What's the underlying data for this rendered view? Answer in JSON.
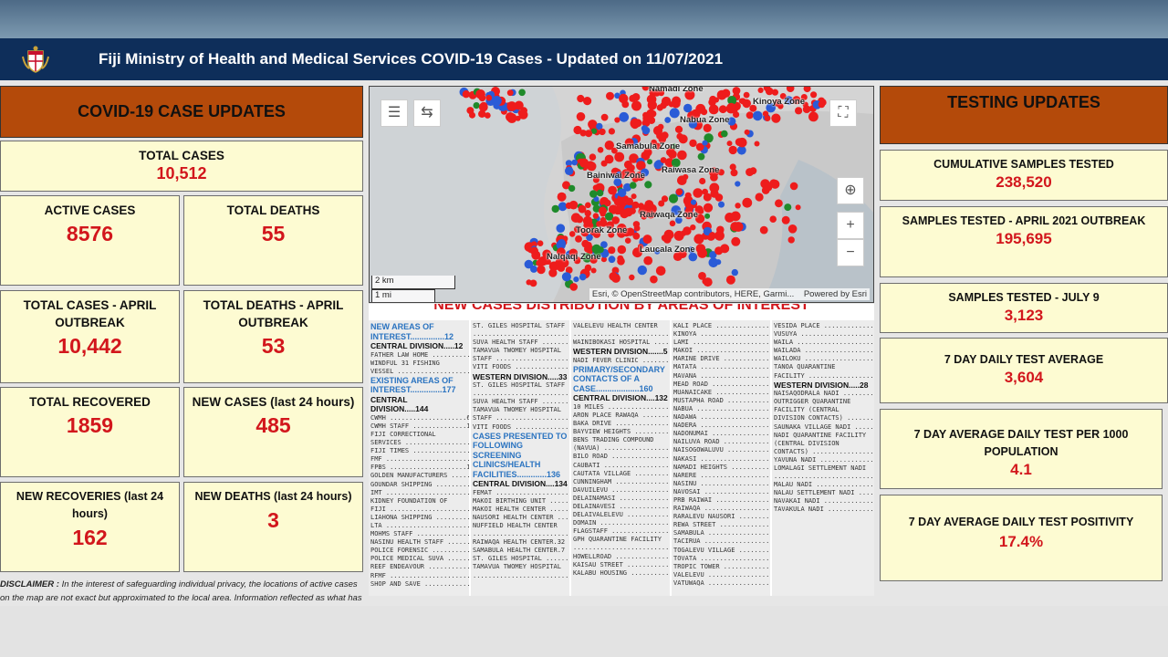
{
  "header": {
    "title": "Fiji Ministry of Health and Medical Services COVID-19 Cases - Updated on 11/07/2021",
    "crest_icon": "fiji-coat-of-arms"
  },
  "left": {
    "banner": "COVID-19 CASE UPDATES",
    "total_cases": {
      "label": "TOTAL CASES",
      "value": "10,512"
    },
    "active_cases": {
      "label": "ACTIVE CASES",
      "value": "8576"
    },
    "total_deaths": {
      "label": "TOTAL DEATHS",
      "value": "55"
    },
    "total_cases_april": {
      "label": "TOTAL CASES - APRIL OUTBREAK",
      "value": "10,442"
    },
    "total_deaths_april": {
      "label": "TOTAL DEATHS - APRIL OUTBREAK",
      "value": "53"
    },
    "total_recovered": {
      "label": "TOTAL RECOVERED",
      "value": "1859"
    },
    "new_cases": {
      "label": "NEW CASES (last 24 hours)",
      "value": "485"
    },
    "new_recoveries": {
      "label": "NEW RECOVERIES (last 24 hours)",
      "value": "162"
    },
    "new_deaths": {
      "label": "NEW DEATHS (last 24 hours)",
      "value": "3"
    },
    "disclaimer_label": "DISCLAIMER :",
    "disclaimer_text": "In the interest of safeguarding individual privacy, the locations of active cases on the map are not exact but approximated to the local area. Information reflected as what has"
  },
  "right": {
    "banner": "TESTING UPDATES",
    "cumulative": {
      "label": "CUMULATIVE SAMPLES TESTED",
      "value": "238,520"
    },
    "april": {
      "label": "SAMPLES TESTED - APRIL 2021 OUTBREAK",
      "value": "195,695"
    },
    "july9": {
      "label": "SAMPLES TESTED - JULY 9",
      "value": "3,123"
    },
    "avg7": {
      "label": "7 DAY DAILY TEST AVERAGE",
      "value": "3,604"
    },
    "per1000": {
      "label": "7 DAY AVERAGE DAILY TEST PER 1000 POPULATION",
      "value": "4.1"
    },
    "positivity": {
      "label": "7 DAY AVERAGE DAILY TEST POSITIVITY",
      "value": "17.4%"
    }
  },
  "map": {
    "zones": [
      "Namadi Zone",
      "Kinoya Zone",
      "Nabua Zone",
      "Samabula Zone",
      "Raiwasa Zone",
      "Bainiwai Zone",
      "Raiwaqa Zone",
      "Toorak Zone",
      "Laucala Zone",
      "Nalqaqi Zone"
    ],
    "scale_km": "2 km",
    "scale_mi": "1 mi",
    "attribution": "Esri, © OpenStreetMap contributors, HERE, Garmi...",
    "powered_by": "Powered by Esri",
    "colors": {
      "red": "#ee1c1c",
      "blue": "#2a5bd7",
      "green": "#1f8a2a"
    }
  },
  "distribution": {
    "title": "NEW CASES DISTRIBUTION BY AREAS OF INTEREST",
    "col1": {
      "h1": "NEW AREAS OF INTEREST...............12",
      "d1": "CENTRAL DIVISION.....12",
      "r1": [
        "FATHER LAW HOME ..........2",
        "WINDFUL 31 FISHING",
        "VESSEL ...................10"
      ],
      "h2": "EXISTING AREAS OF INTEREST..............177",
      "d2": "CENTRAL DIVISION.....144",
      "r2": [
        "CWMH ....................60",
        "CWMH STAFF ..............10",
        "FIJI CORRECTIONAL",
        "SERVICES .................4",
        "FIJI TIMES ...............2",
        "FMF ......................1",
        "FPBS ....................11",
        "GOLDEN MANUFACTURERS .....6",
        "GOUNDAR SHIPPING .........5",
        "IMT ......................1",
        "KIDNEY FOUNDATION OF",
        "FIJI .....................3",
        "LIAHONA SHIPPING .........4",
        "LTA ......................1",
        "MOHMS STAFF ..............5",
        "NASINU HEALTH STAFF ......3",
        "POLICE FORENSIC ..........4",
        "POLICE MEDICAL SUVA ......2",
        "REEF ENDEAVOUR ...........1",
        "RFMF .....................7",
        "SHOP AND SAVE ............1"
      ]
    },
    "col2": {
      "r1": [
        "ST. GILES HOSPITAL STAFF",
        "..........................3",
        "SUVA HEALTH STAFF ........4",
        "TAMAVUA TWOMEY HOSPITAL",
        "STAFF ....................1",
        "VITI FOODS ...............1"
      ],
      "d1": "WESTERN DIVISION.....33",
      "r2": [
        "ST. GILES HOSPITAL STAFF",
        "..........................3",
        "SUVA HEALTH STAFF ........4",
        "TAMAVUA TWOMEY HOSPITAL",
        "STAFF ....................5",
        "VITI FOODS ...............1"
      ],
      "h1": "CASES PRESENTED TO FOLLOWING SCREENING CLINICS/HEALTH FACILITIES.............136",
      "d2": "CENTRAL DIVISION....134",
      "r3": [
        "FEMAT ...................16",
        "MAKOI BIRTHING UNIT ......4",
        "MAKOI HEALTH CENTER ......7",
        "NAUSORI HEALTH CENTER ....6",
        "NUFFIELD HEALTH CENTER",
        "..........................20",
        "RAIWAQA HEALTH CENTER.32",
        "SAMABULA HEALTH CENTER.7",
        "ST. GILES HOSPITAL .......8",
        "TAMAVUA TWOMEY HOSPITAL",
        "..........................13"
      ]
    },
    "col3": {
      "r1": [
        "VALELEVU HEALTH CENTER",
        "..........................12",
        "WAINIBOKASI HOSPITAL .....9"
      ],
      "d1": "WESTERN DIVISION.......5",
      "r2": [
        "NADI FEVER CLINIC ........2"
      ],
      "h1": "PRIMARY/SECONDARY CONTACTS OF A CASE...................160",
      "d2": "CENTRAL DIVISION....132",
      "r3": [
        "10 MILES .................1",
        "ARON PLACE RAWAQA ........1",
        "BAKA DRIVE ...............1",
        "BAYVIEW HEIGHTS ..........1",
        "BENS TRADING COMPOUND",
        "(NAVUA) ..................1",
        "BILO ROAD ................1",
        "CAUBATI ..................1",
        "CAUTATA VILLAGE ..........1",
        "CUNNINGHAM ...............4",
        "DAVUILEVU ................3",
        "DELAINAMASI ..............5",
        "DELAINAVESI ..............5",
        "DELAIVALELEVU ............1",
        "DOMAIN ...................1",
        "FLAGSTAFF ................2",
        "GPH QUARANTINE FACILITY",
        "..........................1",
        "HOWELLROAD ...............1",
        "KAISAU STREET ............1",
        "KALABU HOUSING ...........1"
      ]
    },
    "col4": {
      "r1": [
        "KALI PLACE ...............1",
        "KINOYA ...................4",
        "LAMI .....................2",
        "MAKOI ....................2",
        "MARINE DRIVE .............1",
        "MATATA ...................1",
        "MAVANA ...................1",
        "MEAD ROAD ................1",
        "MUANAICAKE ...............1",
        "MUSTAPHA ROAD ............1",
        "NABUA ....................1",
        "NADAWA ...................2",
        "NADERA ...................1",
        "NADONUMAI ................7",
        "NAILUVA ROAD .............2",
        "NAISOGOWALUVU ............1",
        "NAKASI ...................7",
        "NAMADI HEIGHTS ...........1",
        "NARERE ...................4",
        "NASINU ...................1",
        "NAVOSAI ..................2",
        "PRB RAIWAI ...............1",
        "RAIWAQA ..................3",
        "RARALEVU NAUSORI .........4",
        "REWA STREET ..............1",
        "SAMABULA .................4",
        "TACIRUA ..................3",
        "TOGALEVU VILLAGE .........2",
        "TOVATA ...................1",
        "TROPIC TOWER .............1",
        "VALELEVU ................15",
        "VATUWAQA .................6"
      ]
    },
    "col5": {
      "r1": [
        "VESIDA PLACE .............1",
        "VUSUYA ...................1",
        "WAILA ....................1",
        "WAILADA ..................1",
        "WAILOKU ..................1",
        "TANOA QUARANTINE",
        "FACILITY .................1"
      ],
      "d1": "WESTERN DIVISION.....28",
      "r2": [
        "NAISAQODRALA NADI ........1",
        "OUTRIGGER QUARANTINE",
        "FACILITY (CENTRAL",
        "DIVISION CONTACTS) .......2",
        "SAUNAKA VILLAGE NADI .....4",
        "NADI QUARANTINE FACILITY",
        "(CENTRAL DIVISION",
        "CONTACTS) ................9",
        "YAVUNA NADI ..............3",
        "LOMALAGI SETTLEMENT NADI",
        "..........................1",
        "MALAU NADI ...............1",
        "NALAU SETTLEMENT NADI ....5",
        "NAVAKAI NADI .............1",
        "TAVAKULA NADI ............1"
      ]
    }
  }
}
